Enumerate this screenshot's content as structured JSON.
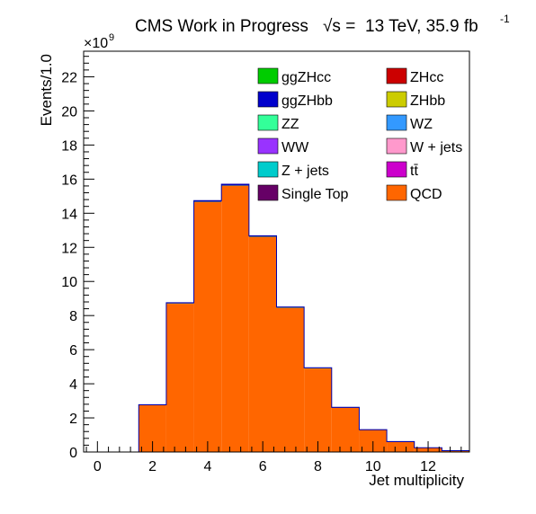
{
  "chart_data": {
    "type": "bar",
    "title": "CMS Work in Progress",
    "title_energy": "13 TeV, 35.9 fb",
    "title_energy_sup": "-1",
    "ylabel": "Events/1.0",
    "xlabel": "Jet multiplicity",
    "exponent_label": "×10",
    "exponent_sup": "9",
    "xlim": [
      -0.5,
      13.5
    ],
    "ylim": [
      0,
      23.5
    ],
    "xticks": [
      0,
      2,
      4,
      6,
      8,
      10,
      12
    ],
    "yticks": [
      0,
      2,
      4,
      6,
      8,
      10,
      12,
      14,
      16,
      18,
      20,
      22
    ],
    "bin_edges": [
      -0.5,
      0.5,
      1.5,
      2.5,
      3.5,
      4.5,
      5.5,
      6.5,
      7.5,
      8.5,
      9.5,
      10.5,
      11.5,
      12.5,
      13.5
    ],
    "stack_order": [
      "QCD",
      "ZHbb",
      "ggZHbb"
    ],
    "series": [
      {
        "name": "QCD",
        "color": "#ff6600",
        "values": [
          0,
          0,
          2.75,
          8.7,
          14.65,
          15.6,
          12.6,
          8.45,
          4.9,
          2.6,
          1.3,
          0.6,
          0.25,
          0.08
        ]
      },
      {
        "name": "ZHbb",
        "color": "#cccc00",
        "values": [
          0,
          0,
          0,
          0.01,
          0.02,
          0.02,
          0.02,
          0.01,
          0.01,
          0,
          0,
          0,
          0,
          0
        ]
      },
      {
        "name": "ggZHbb",
        "color": "#0000cc",
        "values": [
          0,
          0,
          0.02,
          0.04,
          0.07,
          0.08,
          0.06,
          0.04,
          0.03,
          0.02,
          0.01,
          0.01,
          0,
          0
        ]
      }
    ],
    "legend": {
      "placement": "top-right",
      "entries": [
        {
          "name": "ggZHcc",
          "color": "#00cc00"
        },
        {
          "name": "ZHcc",
          "color": "#cc0000"
        },
        {
          "name": "ggZHbb",
          "color": "#0000cc"
        },
        {
          "name": "ZHbb",
          "color": "#cccc00"
        },
        {
          "name": "ZZ",
          "color": "#33ff99"
        },
        {
          "name": "WZ",
          "color": "#3399ff"
        },
        {
          "name": "WW",
          "color": "#9933ff"
        },
        {
          "name": "W + jets",
          "color": "#ff99cc"
        },
        {
          "name": "Z + jets",
          "color": "#00cccc"
        },
        {
          "name": "tt̄",
          "color": "#cc00cc"
        },
        {
          "name": "Single Top",
          "color": "#660066"
        },
        {
          "name": "QCD",
          "color": "#ff6600"
        }
      ]
    },
    "grid": false
  }
}
